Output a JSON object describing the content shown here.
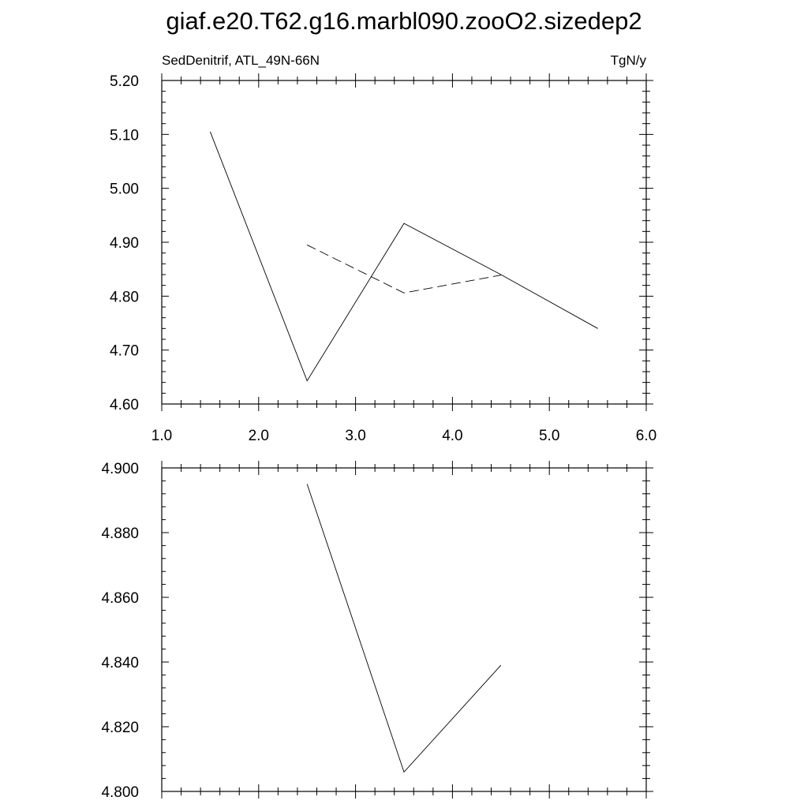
{
  "page": {
    "title": "giaf.e20.T62.g16.marbl090.zooO2.sizedep2"
  },
  "chart_data": [
    {
      "type": "line",
      "subtitle_left": "SedDenitrif, ATL_49N-66N",
      "subtitle_right": "TgN/y",
      "xlim": [
        1.0,
        6.0
      ],
      "ylim": [
        4.6,
        5.2
      ],
      "x_ticks": [
        1.0,
        2.0,
        3.0,
        4.0,
        5.0,
        6.0
      ],
      "x_tick_labels": [
        "1.0",
        "2.0",
        "3.0",
        "4.0",
        "5.0",
        "6.0"
      ],
      "x_minor_step": 0.2,
      "y_ticks": [
        4.6,
        4.7,
        4.8,
        4.9,
        5.0,
        5.1,
        5.2
      ],
      "y_tick_labels": [
        "4.60",
        "4.70",
        "4.80",
        "4.90",
        "5.00",
        "5.10",
        "5.20"
      ],
      "y_minor_step": 0.02,
      "grid": false,
      "series": [
        {
          "style": "solid",
          "x": [
            1.5,
            2.5,
            3.5,
            4.5,
            5.5
          ],
          "y": [
            5.105,
            4.643,
            4.935,
            4.84,
            4.74
          ]
        },
        {
          "style": "dashed",
          "x": [
            2.5,
            3.5,
            4.5
          ],
          "y": [
            4.895,
            4.806,
            4.839
          ]
        }
      ]
    },
    {
      "type": "line",
      "xlim": [
        1.0,
        6.0
      ],
      "ylim": [
        4.8,
        4.9
      ],
      "x_ticks": [
        1.0,
        2.0,
        3.0,
        4.0,
        5.0,
        6.0
      ],
      "x_tick_labels": [],
      "x_minor_step": 0.2,
      "y_ticks": [
        4.8,
        4.82,
        4.84,
        4.86,
        4.88,
        4.9
      ],
      "y_tick_labels": [
        "4.800",
        "4.820",
        "4.840",
        "4.860",
        "4.880",
        "4.900"
      ],
      "y_minor_step": 0.004,
      "grid": false,
      "series": [
        {
          "style": "solid",
          "x": [
            2.5,
            3.5,
            4.5
          ],
          "y": [
            4.895,
            4.806,
            4.839
          ]
        }
      ]
    }
  ]
}
